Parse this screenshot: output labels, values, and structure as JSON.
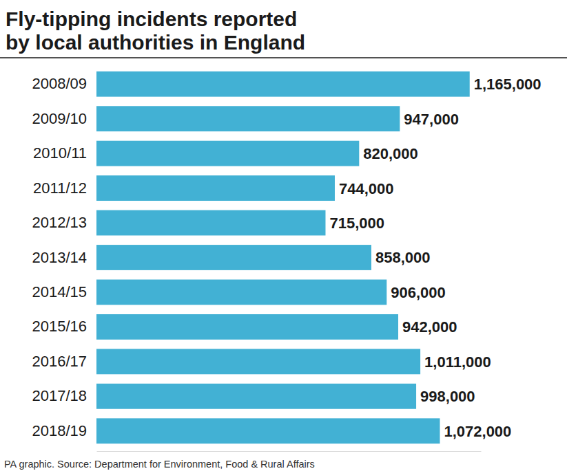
{
  "chart_data": {
    "type": "bar",
    "orientation": "horizontal",
    "title": "Fly-tipping incidents reported\nby local authorities in England",
    "source": "PA graphic. Source: Department for Environment, Food & Rural Affairs",
    "categories": [
      "2008/09",
      "2009/10",
      "2010/11",
      "2011/12",
      "2012/13",
      "2013/14",
      "2014/15",
      "2015/16",
      "2016/17",
      "2017/18",
      "2018/19"
    ],
    "values": [
      1165000,
      947000,
      820000,
      744000,
      715000,
      858000,
      906000,
      942000,
      1011000,
      998000,
      1072000
    ],
    "value_labels": [
      "1,165,000",
      "947,000",
      "820,000",
      "744,000",
      "715,000",
      "858,000",
      "906,000",
      "942,000",
      "1,011,000",
      "998,000",
      "1,072,000"
    ],
    "data_labels": true,
    "color": "#42b1d4",
    "xlim": [
      0,
      1200000
    ],
    "xticks": [],
    "tick_labels": false,
    "grid": false
  }
}
